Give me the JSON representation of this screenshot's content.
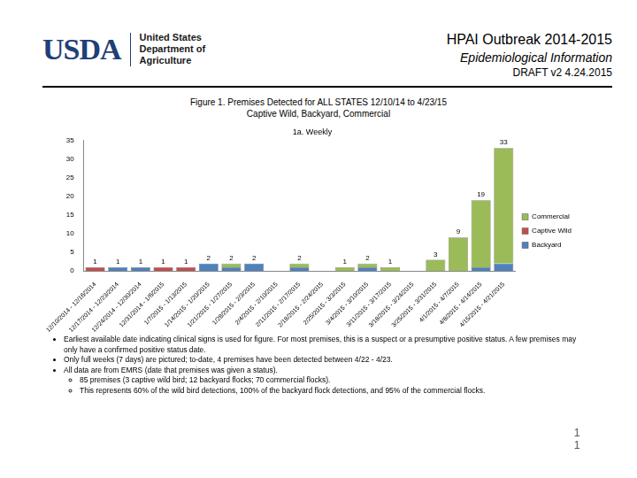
{
  "header": {
    "logo": "USDA",
    "organization": [
      "United States",
      "Department of",
      "Agriculture"
    ],
    "title": "HPAI Outbreak 2014-2015",
    "subtitle": "Epidemiological Information",
    "version": "DRAFT v2 4.24.2015"
  },
  "figure_title": [
    "Figure 1. Premises Detected for ALL STATES 12/10/14 to 4/23/15",
    "Captive Wild, Backyard, Commercial"
  ],
  "chart_data": {
    "type": "bar",
    "title": "1a. Weekly",
    "stacked": true,
    "grid": false,
    "legend": "right",
    "categories": [
      "12/10/2014 - 12/16/2014",
      "12/17/2014 - 12/23/2014",
      "12/24/2014 - 12/30/2014",
      "12/31/2014 - 1/6/2015",
      "1/7/2015 - 1/13/2015",
      "1/14/2015 - 1/20/2015",
      "1/21/2015 - 1/27/2015",
      "1/28/2015 - 2/3/2015",
      "2/4/2015 - 2/10/2015",
      "2/11/2015 - 2/17/2015",
      "2/18/2015 - 2/24/2015",
      "2/25/2015 - 3/3/2015",
      "3/4/2015 - 3/10/2015",
      "3/11/2015 - 3/17/2015",
      "3/18/2015 - 3/24/2015",
      "3/25/2015 - 3/31/2015",
      "4/1/2015 - 4/7/2015",
      "4/8/2015 - 4/14/2015",
      "4/15/2015 - 4/21/2015"
    ],
    "series": [
      {
        "name": "Backyard",
        "color": "#4f81bd",
        "values": [
          0,
          1,
          1,
          0,
          0,
          2,
          1,
          2,
          0,
          1,
          0,
          0,
          1,
          0,
          0,
          0,
          0,
          1,
          2
        ]
      },
      {
        "name": "Captive Wild",
        "color": "#c0504d",
        "values": [
          1,
          0,
          0,
          1,
          1,
          0,
          0,
          0,
          0,
          0,
          0,
          0,
          0,
          0,
          0,
          0,
          0,
          0,
          0
        ]
      },
      {
        "name": "Commercial",
        "color": "#9bbb59",
        "values": [
          0,
          0,
          0,
          0,
          0,
          0,
          1,
          0,
          0,
          1,
          0,
          1,
          1,
          1,
          0,
          3,
          9,
          18,
          31
        ]
      }
    ],
    "totals": [
      1,
      1,
      1,
      1,
      1,
      2,
      2,
      2,
      null,
      2,
      null,
      1,
      2,
      1,
      null,
      3,
      9,
      19,
      33
    ],
    "ylim": [
      0,
      35
    ],
    "yticks": [
      0,
      5,
      10,
      15,
      20,
      25,
      30,
      35
    ]
  },
  "bullets": [
    {
      "text": "Earliest available date indicating clinical signs is used for figure. For most premises, this is a suspect or a presumptive positive status. A few premises may only have a confirmed positive status date.",
      "sub": []
    },
    {
      "text": "Only full weeks (7 days) are pictured; to-date, 4 premises have been detected between 4/22 - 4/23.",
      "sub": []
    },
    {
      "text": "All data are from EMRS (date that premises was given a status).",
      "sub": [
        "85 premises (3 captive wild bird; 12 backyard flocks; 70 commercial flocks).",
        "This represents 60% of the wild bird detections, 100% of the backyard flock detections, and 95% of the commercial flocks."
      ]
    }
  ],
  "page_number": "11"
}
